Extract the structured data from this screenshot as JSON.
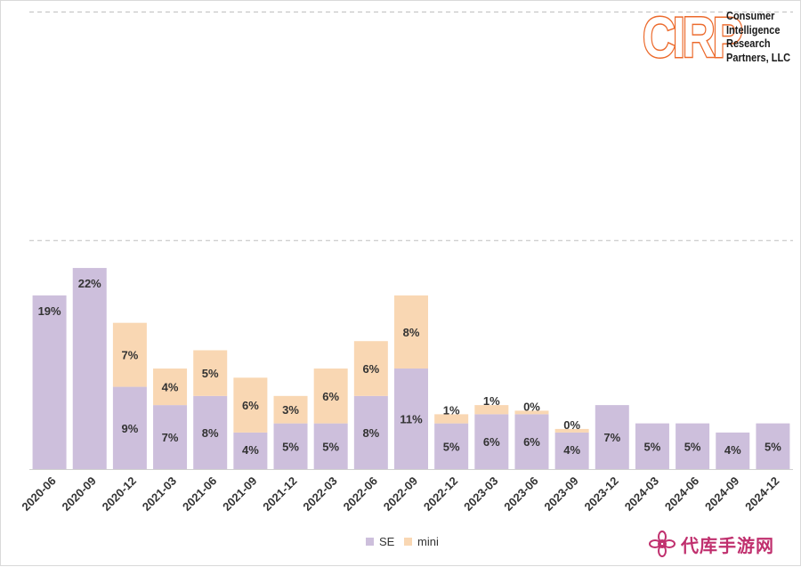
{
  "logo": {
    "mark": "CIRP",
    "lines": [
      "Consumer",
      "Intelligence",
      "Research",
      "Partners, LLC"
    ]
  },
  "watermark": {
    "text": "代库手游网"
  },
  "colors": {
    "SE": "#cdbfdc",
    "mini": "#f9d7b3",
    "gridline": "#bfbfbf",
    "label": "#333333"
  },
  "chart_data": {
    "type": "bar",
    "stacked": true,
    "categories": [
      "2020-06",
      "2020-09",
      "2020-12",
      "2021-03",
      "2021-06",
      "2021-09",
      "2021-12",
      "2022-03",
      "2022-06",
      "2022-09",
      "2022-12",
      "2023-03",
      "2023-06",
      "2023-09",
      "2023-12",
      "2024-03",
      "2024-06",
      "2024-09",
      "2024-12"
    ],
    "series": [
      {
        "name": "SE",
        "values": [
          19,
          22,
          9,
          7,
          8,
          4,
          5,
          5,
          8,
          11,
          5,
          6,
          6,
          4,
          7,
          5,
          5,
          4,
          5
        ],
        "labels": [
          "19%",
          "22%",
          "9%",
          "7%",
          "8%",
          "4%",
          "5%",
          "5%",
          "8%",
          "11%",
          "5%",
          "6%",
          "6%",
          "4%",
          "7%",
          "5%",
          "5%",
          "4%",
          "5%"
        ]
      },
      {
        "name": "mini",
        "values": [
          0,
          0,
          7,
          4,
          5,
          6,
          3,
          6,
          6,
          8,
          1,
          1,
          0,
          0,
          0,
          0,
          0,
          0,
          0
        ],
        "labels": [
          "",
          "",
          "7%",
          "4%",
          "5%",
          "6%",
          "3%",
          "6%",
          "6%",
          "8%",
          "1%",
          "1%",
          "0%",
          "0%",
          "",
          "",
          "",
          "",
          ""
        ]
      }
    ],
    "ylim": [
      0,
      50
    ],
    "grid": true,
    "legend": "bottom",
    "title": "",
    "xlabel": "",
    "ylabel": ""
  }
}
